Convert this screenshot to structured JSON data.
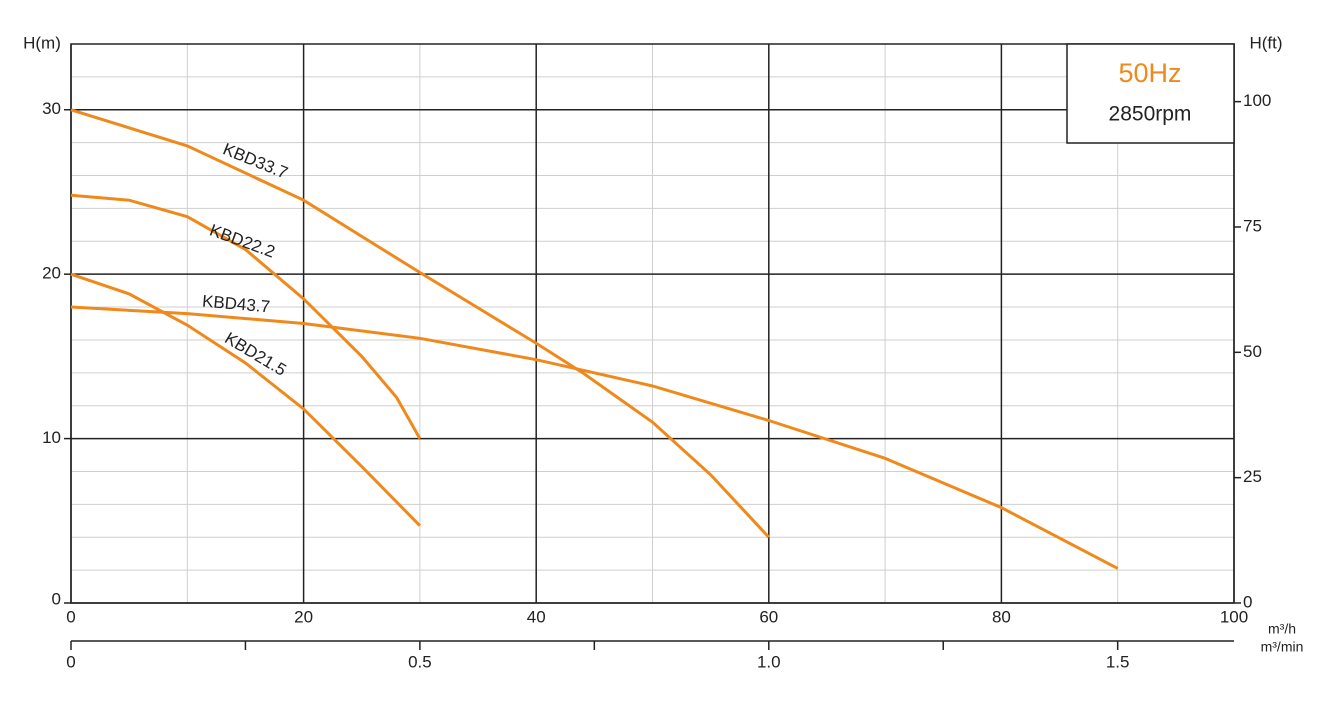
{
  "chart_data": {
    "type": "line",
    "y_label": "H(m)",
    "y2_label": "H(ft)",
    "x_label": "m³/h",
    "x2_label": "m³/min",
    "annotations": {
      "frequency": "50Hz",
      "speed": "2850rpm"
    },
    "xlim": [
      0,
      100
    ],
    "xticks": [
      0,
      20,
      40,
      60,
      80,
      100
    ],
    "x_minor_ticks": [
      10,
      30,
      50,
      70,
      90
    ],
    "x2lim": [
      0,
      1.6667
    ],
    "x2ticks": [
      0,
      0.5,
      {
        "value": 1,
        "label": "1.0"
      },
      1.5
    ],
    "x2_minor_ticks": [
      0.25,
      0.75,
      1.25
    ],
    "ylim": [
      0,
      34
    ],
    "yticks": [
      0,
      10,
      20,
      30
    ],
    "y_minor_ticks": [
      2,
      4,
      6,
      8,
      12,
      14,
      16,
      18,
      22,
      24,
      26,
      28,
      32
    ],
    "y2lim": [
      0,
      111.5
    ],
    "y2ticks": [
      0,
      25,
      50,
      75,
      100
    ],
    "grid": true,
    "series": [
      {
        "name": "KBD33.7",
        "color": "#f0891b",
        "x": [
          0,
          10,
          20,
          30,
          40,
          44,
          50,
          55,
          60
        ],
        "values": [
          30,
          27.8,
          24.5,
          20.1,
          15.8,
          14,
          11,
          7.8,
          4
        ]
      },
      {
        "name": "KBD22.2",
        "color": "#f0891b",
        "x": [
          0,
          5,
          10,
          15,
          20,
          25,
          28,
          30
        ],
        "values": [
          24.8,
          24.5,
          23.5,
          21.5,
          18.5,
          15,
          12.5,
          10
        ]
      },
      {
        "name": "KBD43.7",
        "color": "#f0891b",
        "x": [
          0,
          10,
          20,
          30,
          40,
          50,
          60,
          70,
          80,
          90
        ],
        "values": [
          18,
          17.6,
          17,
          16.1,
          14.8,
          13.2,
          11.1,
          8.8,
          5.8,
          2.1
        ]
      },
      {
        "name": "KBD21.5",
        "color": "#f0891b",
        "x": [
          0,
          5,
          10,
          15,
          20,
          25,
          30
        ],
        "values": [
          20,
          18.8,
          16.9,
          14.6,
          11.8,
          8.3,
          4.7
        ]
      }
    ]
  }
}
